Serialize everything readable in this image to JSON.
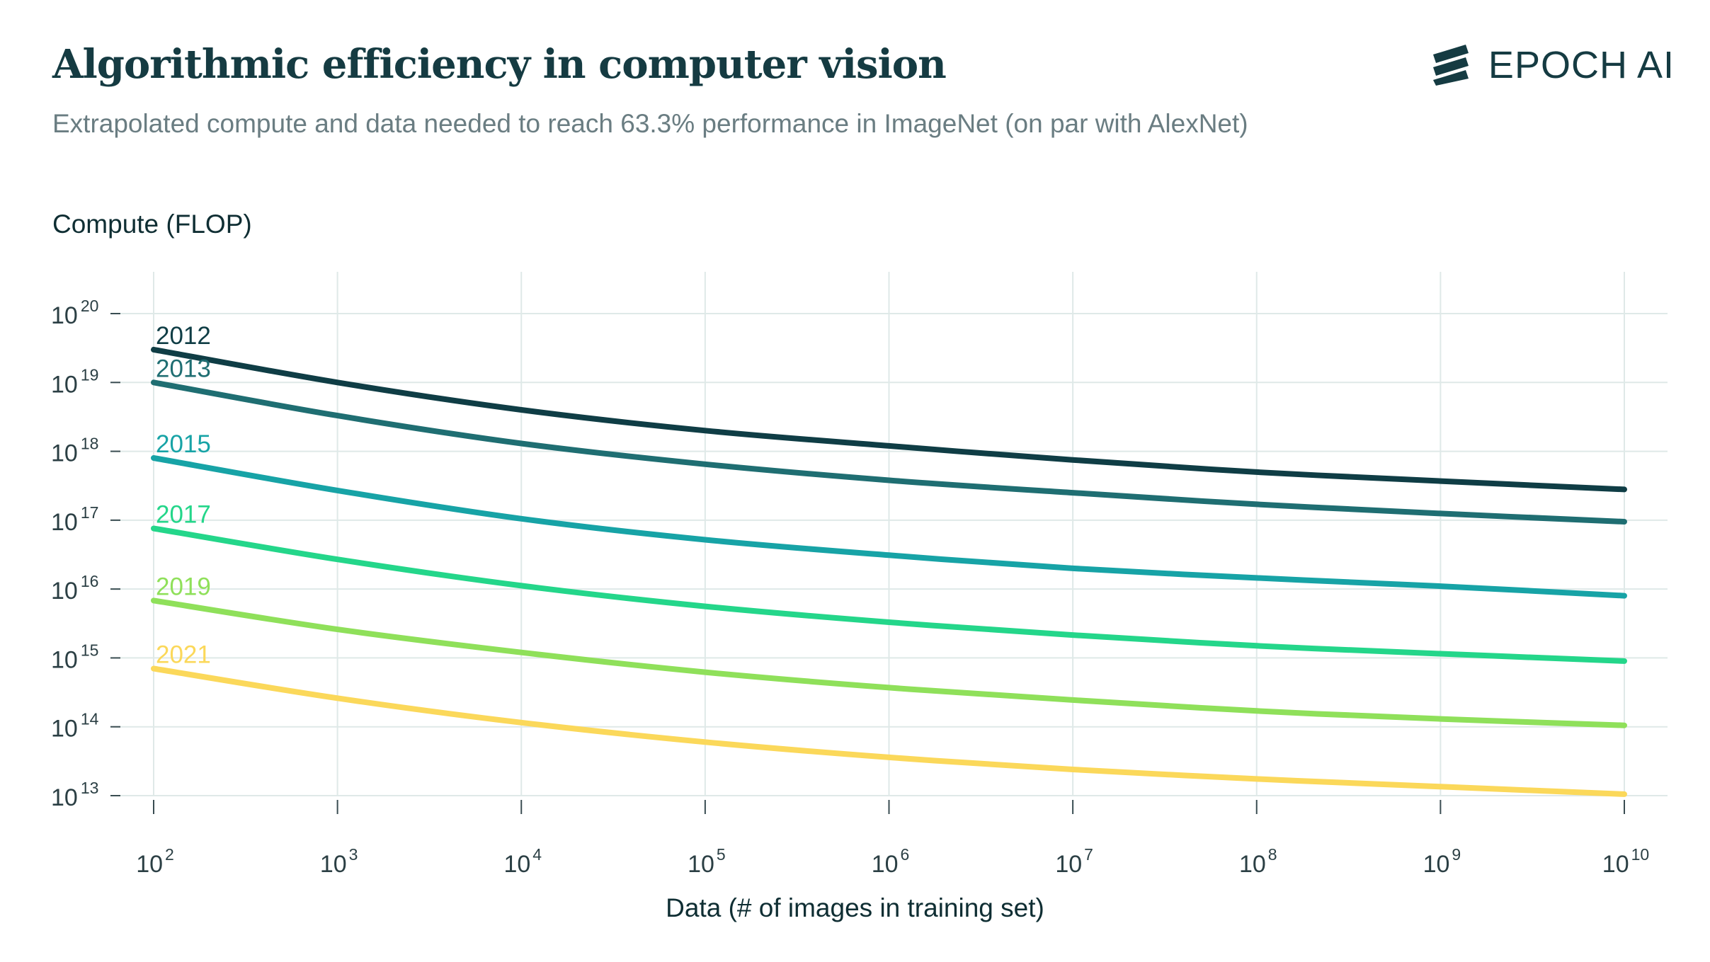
{
  "header": {
    "title": "Algorithmic efficiency in computer vision",
    "subtitle": "Extrapolated compute and data needed to reach 63.3% performance in ImageNet (on par with AlexNet)",
    "logo_text": "EPOCH AI"
  },
  "chart_data": {
    "type": "line",
    "ylabel": "Compute (FLOP)",
    "xlabel": "Data (# of images in training set)",
    "x_scale": "log",
    "y_scale": "log",
    "xlim": [
      100,
      10000000000
    ],
    "ylim": [
      10000000000000,
      100000000000000000000
    ],
    "x_ticks": [
      {
        "value": 100,
        "base": "10",
        "exp": "2"
      },
      {
        "value": 1000,
        "base": "10",
        "exp": "3"
      },
      {
        "value": 10000,
        "base": "10",
        "exp": "4"
      },
      {
        "value": 100000,
        "base": "10",
        "exp": "5"
      },
      {
        "value": 1000000,
        "base": "10",
        "exp": "6"
      },
      {
        "value": 10000000,
        "base": "10",
        "exp": "7"
      },
      {
        "value": 100000000,
        "base": "10",
        "exp": "8"
      },
      {
        "value": 1000000000,
        "base": "10",
        "exp": "9"
      },
      {
        "value": 10000000000,
        "base": "10",
        "exp": "10"
      }
    ],
    "y_ticks": [
      {
        "value": 10000000000000,
        "base": "10",
        "exp": "13"
      },
      {
        "value": 100000000000000,
        "base": "10",
        "exp": "14"
      },
      {
        "value": 1000000000000000,
        "base": "10",
        "exp": "15"
      },
      {
        "value": 10000000000000000,
        "base": "10",
        "exp": "16"
      },
      {
        "value": 100000000000000000,
        "base": "10",
        "exp": "17"
      },
      {
        "value": 1000000000000000000,
        "base": "10",
        "exp": "18"
      },
      {
        "value": 10000000000000000000,
        "base": "10",
        "exp": "19"
      },
      {
        "value": 100000000000000000000,
        "base": "10",
        "exp": "20"
      }
    ],
    "grid": true,
    "series": [
      {
        "name": "2012",
        "color": "#0f3d45",
        "x": [
          100,
          1000,
          10000,
          100000,
          1000000,
          10000000,
          100000000,
          1000000000,
          10000000000
        ],
        "y": [
          3e+19,
          1e+19,
          4e+18,
          2e+18,
          1.2e+18,
          7.5e+17,
          5e+17,
          3.7e+17,
          2.8e+17
        ]
      },
      {
        "name": "2013",
        "color": "#1f6e72",
        "x": [
          100,
          1000,
          10000,
          100000,
          1000000,
          10000000,
          100000000,
          1000000000,
          10000000000
        ],
        "y": [
          1e+19,
          3.3e+18,
          1.3e+18,
          6.5e+17,
          3.8e+17,
          2.5e+17,
          1.7e+17,
          1.25e+17,
          9.5e+16
        ]
      },
      {
        "name": "2015",
        "color": "#17a3a6",
        "x": [
          100,
          1000,
          10000,
          100000,
          1000000,
          10000000,
          100000000,
          1000000000,
          10000000000
        ],
        "y": [
          8e+17,
          2.7e+17,
          1.05e+17,
          5.2e+16,
          3.1e+16,
          2e+16,
          1.45e+16,
          1.1e+16,
          8000000000000000.0
        ]
      },
      {
        "name": "2017",
        "color": "#24d68a",
        "x": [
          100,
          1000,
          10000,
          100000,
          1000000,
          10000000,
          100000000,
          1000000000,
          10000000000
        ],
        "y": [
          7.6e+16,
          2.7e+16,
          1.12e+16,
          5600000000000000.0,
          3300000000000000.0,
          2150000000000000.0,
          1500000000000000.0,
          1150000000000000.0,
          900000000000000.0
        ]
      },
      {
        "name": "2019",
        "color": "#8fe05a",
        "x": [
          100,
          1000,
          10000,
          100000,
          1000000,
          10000000,
          100000000,
          1000000000,
          10000000000
        ],
        "y": [
          6800000000000000.0,
          2600000000000000.0,
          1200000000000000.0,
          620000000000000.0,
          370000000000000.0,
          245000000000000.0,
          170000000000000.0,
          130000000000000.0,
          105000000000000.0
        ]
      },
      {
        "name": "2021",
        "color": "#fbd85a",
        "x": [
          100,
          1000,
          10000,
          100000,
          1000000,
          10000000,
          100000000,
          1000000000,
          10000000000
        ],
        "y": [
          700000000000000.0,
          260000000000000.0,
          115000000000000.0,
          60000000000000.0,
          36000000000000.0,
          24000000000000.0,
          17500000000000.0,
          13500000000000.0,
          10500000000000.0
        ]
      }
    ]
  }
}
